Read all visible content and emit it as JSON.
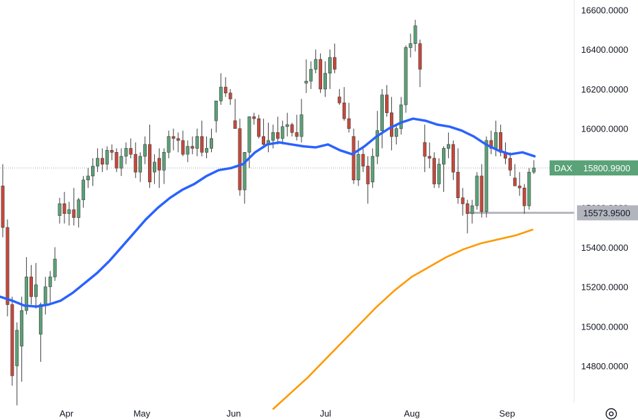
{
  "chart_data": {
    "type": "candlestick",
    "symbol_tag": "DAX",
    "last_price_label": "15800.9900",
    "support_label": "15573.9500",
    "y_ticks": [
      "16600.0000",
      "16400.0000",
      "16200.0000",
      "16000.0000",
      "15800.0000",
      "15600.0000",
      "15400.0000",
      "15200.0000",
      "15000.0000",
      "14800.0000"
    ],
    "x_ticks": [
      "Apr",
      "May",
      "Jun",
      "Jul",
      "Aug",
      "Sep"
    ],
    "ylim": [
      14620,
      16650
    ],
    "last_price": 15800.99,
    "support_level": 15573.95,
    "colors": {
      "up": "#5aa277",
      "down": "#c9473a",
      "ma_fast": "#2962ff",
      "ma_slow": "#ff9800",
      "support": "#b2b5be",
      "last_tag": "#5aa277",
      "support_tag": "#b2b5be"
    },
    "candles": [
      [
        15710,
        15820,
        15450,
        15500
      ],
      [
        15500,
        15540,
        15050,
        15110
      ],
      [
        15110,
        15150,
        14700,
        14750
      ],
      [
        14800,
        15020,
        14600,
        14980
      ],
      [
        14900,
        15150,
        14720,
        15080
      ],
      [
        15080,
        15350,
        15060,
        15250
      ],
      [
        15250,
        15310,
        15110,
        15150
      ],
      [
        15150,
        15320,
        15090,
        15210
      ],
      [
        14960,
        15120,
        14820,
        15110
      ],
      [
        15110,
        15250,
        15060,
        15200
      ],
      [
        15200,
        15280,
        15120,
        15250
      ],
      [
        15250,
        15400,
        15230,
        15340
      ],
      [
        15560,
        15650,
        15520,
        15620
      ],
      [
        15620,
        15680,
        15520,
        15570
      ],
      [
        15570,
        15630,
        15510,
        15590
      ],
      [
        15590,
        15700,
        15510,
        15550
      ],
      [
        15550,
        15650,
        15500,
        15640
      ],
      [
        15640,
        15760,
        15600,
        15740
      ],
      [
        15740,
        15800,
        15700,
        15760
      ],
      [
        15760,
        15850,
        15710,
        15810
      ],
      [
        15810,
        15900,
        15780,
        15850
      ],
      [
        15850,
        15900,
        15780,
        15820
      ],
      [
        15820,
        15910,
        15790,
        15890
      ],
      [
        15890,
        15920,
        15840,
        15880
      ],
      [
        15880,
        15900,
        15780,
        15800
      ],
      [
        15800,
        15900,
        15760,
        15860
      ],
      [
        15860,
        15930,
        15820,
        15900
      ],
      [
        15900,
        15950,
        15850,
        15870
      ],
      [
        15870,
        15930,
        15750,
        15780
      ],
      [
        15780,
        15880,
        15730,
        15860
      ],
      [
        15860,
        15960,
        15820,
        15920
      ],
      [
        15920,
        16020,
        15700,
        15730
      ],
      [
        15780,
        15870,
        15720,
        15830
      ],
      [
        15850,
        15900,
        15700,
        15790
      ],
      [
        15790,
        15900,
        15720,
        15880
      ],
      [
        15880,
        15990,
        15850,
        15960
      ],
      [
        15960,
        16000,
        15890,
        15950
      ],
      [
        15950,
        15980,
        15880,
        15940
      ],
      [
        15940,
        15990,
        15860,
        15870
      ],
      [
        15870,
        15940,
        15830,
        15910
      ],
      [
        15910,
        15960,
        15870,
        15900
      ],
      [
        15900,
        16000,
        15860,
        15960
      ],
      [
        15960,
        16040,
        15860,
        15880
      ],
      [
        15880,
        15960,
        15850,
        15900
      ],
      [
        15900,
        16000,
        15880,
        15950
      ],
      [
        16040,
        16140,
        15980,
        16140
      ],
      [
        16140,
        16280,
        16120,
        16210
      ],
      [
        16210,
        16260,
        16160,
        16180
      ],
      [
        16180,
        16200,
        16120,
        16150
      ],
      [
        16040,
        16150,
        16000,
        16000
      ],
      [
        16000,
        16050,
        15660,
        15690
      ],
      [
        15690,
        15860,
        15620,
        15880
      ],
      [
        15880,
        16060,
        15800,
        16060
      ],
      [
        16060,
        16080,
        16020,
        16050
      ],
      [
        16050,
        16070,
        15950,
        15960
      ],
      [
        15960,
        16050,
        15900,
        15920
      ],
      [
        15920,
        16030,
        15880,
        15940
      ],
      [
        15940,
        16020,
        15900,
        15980
      ],
      [
        15980,
        16060,
        15920,
        15950
      ],
      [
        15950,
        16040,
        15920,
        16010
      ],
      [
        16010,
        16080,
        15960,
        16020
      ],
      [
        16020,
        16030,
        15960,
        15980
      ],
      [
        15980,
        16070,
        15940,
        15960
      ],
      [
        15960,
        16150,
        15930,
        16070
      ],
      [
        16230,
        16350,
        16180,
        16240
      ],
      [
        16240,
        16340,
        16200,
        16300
      ],
      [
        16300,
        16400,
        16280,
        16350
      ],
      [
        16350,
        16380,
        16180,
        16200
      ],
      [
        16200,
        16340,
        16160,
        16280
      ],
      [
        16280,
        16400,
        16200,
        16360
      ],
      [
        16360,
        16430,
        16280,
        16300
      ],
      [
        16160,
        16200,
        16120,
        16130
      ],
      [
        16130,
        16210,
        16040,
        16050
      ],
      [
        16050,
        16130,
        15980,
        16000
      ],
      [
        15960,
        16000,
        15720,
        15740
      ],
      [
        15740,
        15940,
        15710,
        15870
      ],
      [
        15870,
        15900,
        15780,
        15810
      ],
      [
        15810,
        15860,
        15620,
        15720
      ],
      [
        15730,
        15900,
        15700,
        15860
      ],
      [
        15860,
        16090,
        15820,
        15990
      ],
      [
        15990,
        16200,
        15900,
        16170
      ],
      [
        16170,
        16220,
        16060,
        16080
      ],
      [
        16080,
        16160,
        15890,
        15960
      ],
      [
        15960,
        16020,
        15920,
        16000
      ],
      [
        16000,
        16160,
        15970,
        16120
      ],
      [
        16120,
        16420,
        16080,
        16410
      ],
      [
        16410,
        16480,
        16360,
        16430
      ],
      [
        16430,
        16550,
        16390,
        16520
      ],
      [
        16430,
        16450,
        16210,
        16300
      ],
      [
        15930,
        16020,
        15780,
        15860
      ],
      [
        15860,
        15930,
        15800,
        15850
      ],
      [
        15850,
        15880,
        15700,
        15720
      ],
      [
        15720,
        15850,
        15700,
        15820
      ],
      [
        15820,
        15910,
        15680,
        15900
      ],
      [
        15900,
        15980,
        15850,
        15920
      ],
      [
        15920,
        15940,
        15740,
        15780
      ],
      [
        15780,
        15900,
        15620,
        15650
      ],
      [
        15650,
        15700,
        15560,
        15620
      ],
      [
        15620,
        15640,
        15470,
        15570
      ],
      [
        15570,
        15640,
        15520,
        15610
      ],
      [
        15610,
        15780,
        15590,
        15760
      ],
      [
        15760,
        15820,
        15550,
        15580
      ],
      [
        15580,
        15960,
        15550,
        15940
      ],
      [
        15940,
        15990,
        15870,
        15900
      ],
      [
        15900,
        16040,
        15860,
        15980
      ],
      [
        15980,
        16020,
        15860,
        15880
      ],
      [
        15880,
        15930,
        15820,
        15850
      ],
      [
        15850,
        15880,
        15760,
        15790
      ],
      [
        15750,
        15820,
        15710,
        15710
      ],
      [
        15710,
        15780,
        15660,
        15700
      ],
      [
        15700,
        15720,
        15570,
        15610
      ],
      [
        15610,
        15800,
        15590,
        15780
      ],
      [
        15780,
        15840,
        15770,
        15801
      ]
    ],
    "ma_fast": [
      15150,
      15130,
      15105,
      15100,
      15110,
      15130,
      15170,
      15220,
      15270,
      15330,
      15400,
      15470,
      15540,
      15600,
      15650,
      15690,
      15720,
      15760,
      15790,
      15800,
      15820,
      15880,
      15920,
      15930,
      15920,
      15910,
      15905,
      15920,
      15890,
      15870,
      15910,
      15960,
      16000,
      16030,
      16050,
      16040,
      16020,
      16010,
      15990,
      15960,
      15920,
      15890,
      15870,
      15880,
      15860
    ],
    "ma_slow": [
      14580,
      14660,
      14740,
      14830,
      14920,
      15010,
      15100,
      15180,
      15250,
      15300,
      15350,
      15390,
      15420,
      15440,
      15460,
      15490
    ]
  }
}
